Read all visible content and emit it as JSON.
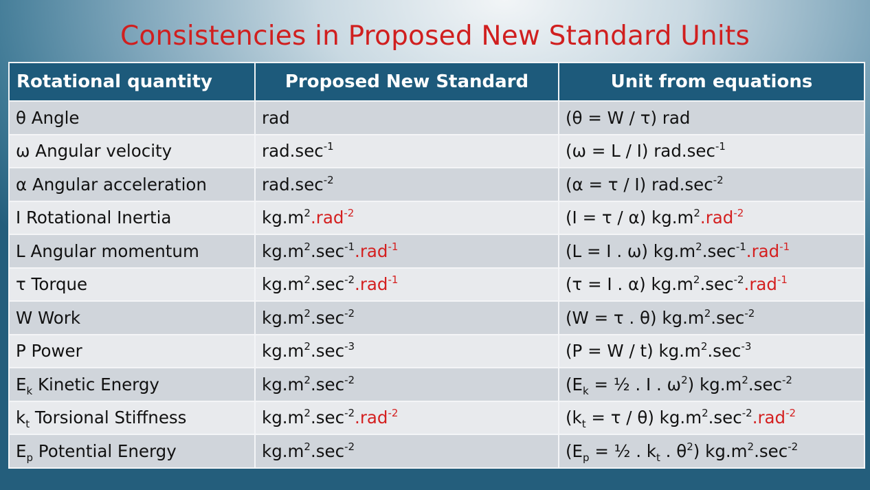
{
  "title": "Consistencies in Proposed New Standard Units",
  "colors": {
    "title": "#d01f1f",
    "header_bg": "#1d5a7b",
    "highlight": "#d42020",
    "row_dark": "#d0d5db",
    "row_light": "#e8eaed"
  },
  "table": {
    "headers": [
      "Rotational quantity",
      "Proposed New Standard",
      "Unit from equations"
    ],
    "rows": [
      [
        [
          [
            "θ Angle",
            ""
          ]
        ],
        [
          [
            "rad",
            ""
          ]
        ],
        [
          [
            "(θ = W / τ) rad",
            ""
          ]
        ]
      ],
      [
        [
          [
            "ω Angular velocity",
            ""
          ]
        ],
        [
          [
            "rad.sec",
            ""
          ],
          [
            "-1",
            "sup"
          ]
        ],
        [
          [
            "(ω = L / I) rad.sec",
            ""
          ],
          [
            "-1",
            "sup"
          ]
        ]
      ],
      [
        [
          [
            "α Angular acceleration",
            ""
          ]
        ],
        [
          [
            "rad.sec",
            ""
          ],
          [
            "-2",
            "sup"
          ]
        ],
        [
          [
            "(α = τ / I) rad.sec",
            ""
          ],
          [
            "-2",
            "sup"
          ]
        ]
      ],
      [
        [
          [
            "I Rotational Inertia",
            ""
          ]
        ],
        [
          [
            "kg.m",
            ""
          ],
          [
            "2",
            "sup"
          ],
          [
            ".rad",
            "red"
          ],
          [
            "-2",
            "redsup"
          ]
        ],
        [
          [
            "(I = τ / α) kg.m",
            ""
          ],
          [
            "2",
            "sup"
          ],
          [
            ".rad",
            "red"
          ],
          [
            "-2",
            "redsup"
          ]
        ]
      ],
      [
        [
          [
            "L Angular momentum",
            ""
          ]
        ],
        [
          [
            "kg.m",
            ""
          ],
          [
            "2",
            "sup"
          ],
          [
            ".sec",
            ""
          ],
          [
            "-1",
            "sup"
          ],
          [
            ".rad",
            "red"
          ],
          [
            "-1",
            "redsup"
          ]
        ],
        [
          [
            "(L = I . ω) kg.m",
            ""
          ],
          [
            "2",
            "sup"
          ],
          [
            ".sec",
            ""
          ],
          [
            "-1",
            "sup"
          ],
          [
            ".rad",
            "red"
          ],
          [
            "-1",
            "redsup"
          ]
        ]
      ],
      [
        [
          [
            "τ Torque",
            ""
          ]
        ],
        [
          [
            "kg.m",
            ""
          ],
          [
            "2",
            "sup"
          ],
          [
            ".sec",
            ""
          ],
          [
            "-2",
            "sup"
          ],
          [
            ".rad",
            "red"
          ],
          [
            "-1",
            "redsup"
          ]
        ],
        [
          [
            "(τ = I . α) kg.m",
            ""
          ],
          [
            "2",
            "sup"
          ],
          [
            ".sec",
            ""
          ],
          [
            "-2",
            "sup"
          ],
          [
            ".rad",
            "red"
          ],
          [
            "-1",
            "redsup"
          ]
        ]
      ],
      [
        [
          [
            "W Work",
            ""
          ]
        ],
        [
          [
            "kg.m",
            ""
          ],
          [
            "2",
            "sup"
          ],
          [
            ".sec",
            ""
          ],
          [
            "-2",
            "sup"
          ]
        ],
        [
          [
            "(W = τ . θ) kg.m",
            ""
          ],
          [
            "2",
            "sup"
          ],
          [
            ".sec",
            ""
          ],
          [
            "-2",
            "sup"
          ]
        ]
      ],
      [
        [
          [
            "P Power",
            ""
          ]
        ],
        [
          [
            "kg.m",
            ""
          ],
          [
            "2",
            "sup"
          ],
          [
            ".sec",
            ""
          ],
          [
            "-3",
            "sup"
          ]
        ],
        [
          [
            "(P = W / t) kg.m",
            ""
          ],
          [
            "2",
            "sup"
          ],
          [
            ".sec",
            ""
          ],
          [
            "-3",
            "sup"
          ]
        ]
      ],
      [
        [
          [
            "E",
            ""
          ],
          [
            "k",
            "sub"
          ],
          [
            " Kinetic Energy",
            ""
          ]
        ],
        [
          [
            "kg.m",
            ""
          ],
          [
            "2",
            "sup"
          ],
          [
            ".sec",
            ""
          ],
          [
            "-2",
            "sup"
          ]
        ],
        [
          [
            "(E",
            ""
          ],
          [
            "k",
            "sub"
          ],
          [
            " = ½ . I . ω",
            ""
          ],
          [
            "2",
            "sup"
          ],
          [
            ") kg.m",
            ""
          ],
          [
            "2",
            "sup"
          ],
          [
            ".sec",
            ""
          ],
          [
            "-2",
            "sup"
          ]
        ]
      ],
      [
        [
          [
            "k",
            ""
          ],
          [
            "t",
            "sub"
          ],
          [
            " Torsional Stiffness",
            ""
          ]
        ],
        [
          [
            "kg.m",
            ""
          ],
          [
            "2",
            "sup"
          ],
          [
            ".sec",
            ""
          ],
          [
            "-2",
            "sup"
          ],
          [
            ".rad",
            "red"
          ],
          [
            "-2",
            "redsup"
          ]
        ],
        [
          [
            "(k",
            ""
          ],
          [
            "t",
            "sub"
          ],
          [
            " = τ / θ) kg.m",
            ""
          ],
          [
            "2",
            "sup"
          ],
          [
            ".sec",
            ""
          ],
          [
            "-2",
            "sup"
          ],
          [
            ".rad",
            "red"
          ],
          [
            "-2",
            "redsup"
          ]
        ]
      ],
      [
        [
          [
            "E",
            ""
          ],
          [
            "p",
            "sub"
          ],
          [
            " Potential Energy",
            ""
          ]
        ],
        [
          [
            "kg.m",
            ""
          ],
          [
            "2",
            "sup"
          ],
          [
            ".sec",
            ""
          ],
          [
            "-2",
            "sup"
          ]
        ],
        [
          [
            "(E",
            ""
          ],
          [
            "p",
            "sub"
          ],
          [
            " = ½ . k",
            ""
          ],
          [
            "t",
            "sub"
          ],
          [
            " . θ",
            ""
          ],
          [
            "2",
            "sup"
          ],
          [
            ") kg.m",
            ""
          ],
          [
            "2",
            "sup"
          ],
          [
            ".sec",
            ""
          ],
          [
            "-2",
            "sup"
          ]
        ]
      ]
    ]
  }
}
